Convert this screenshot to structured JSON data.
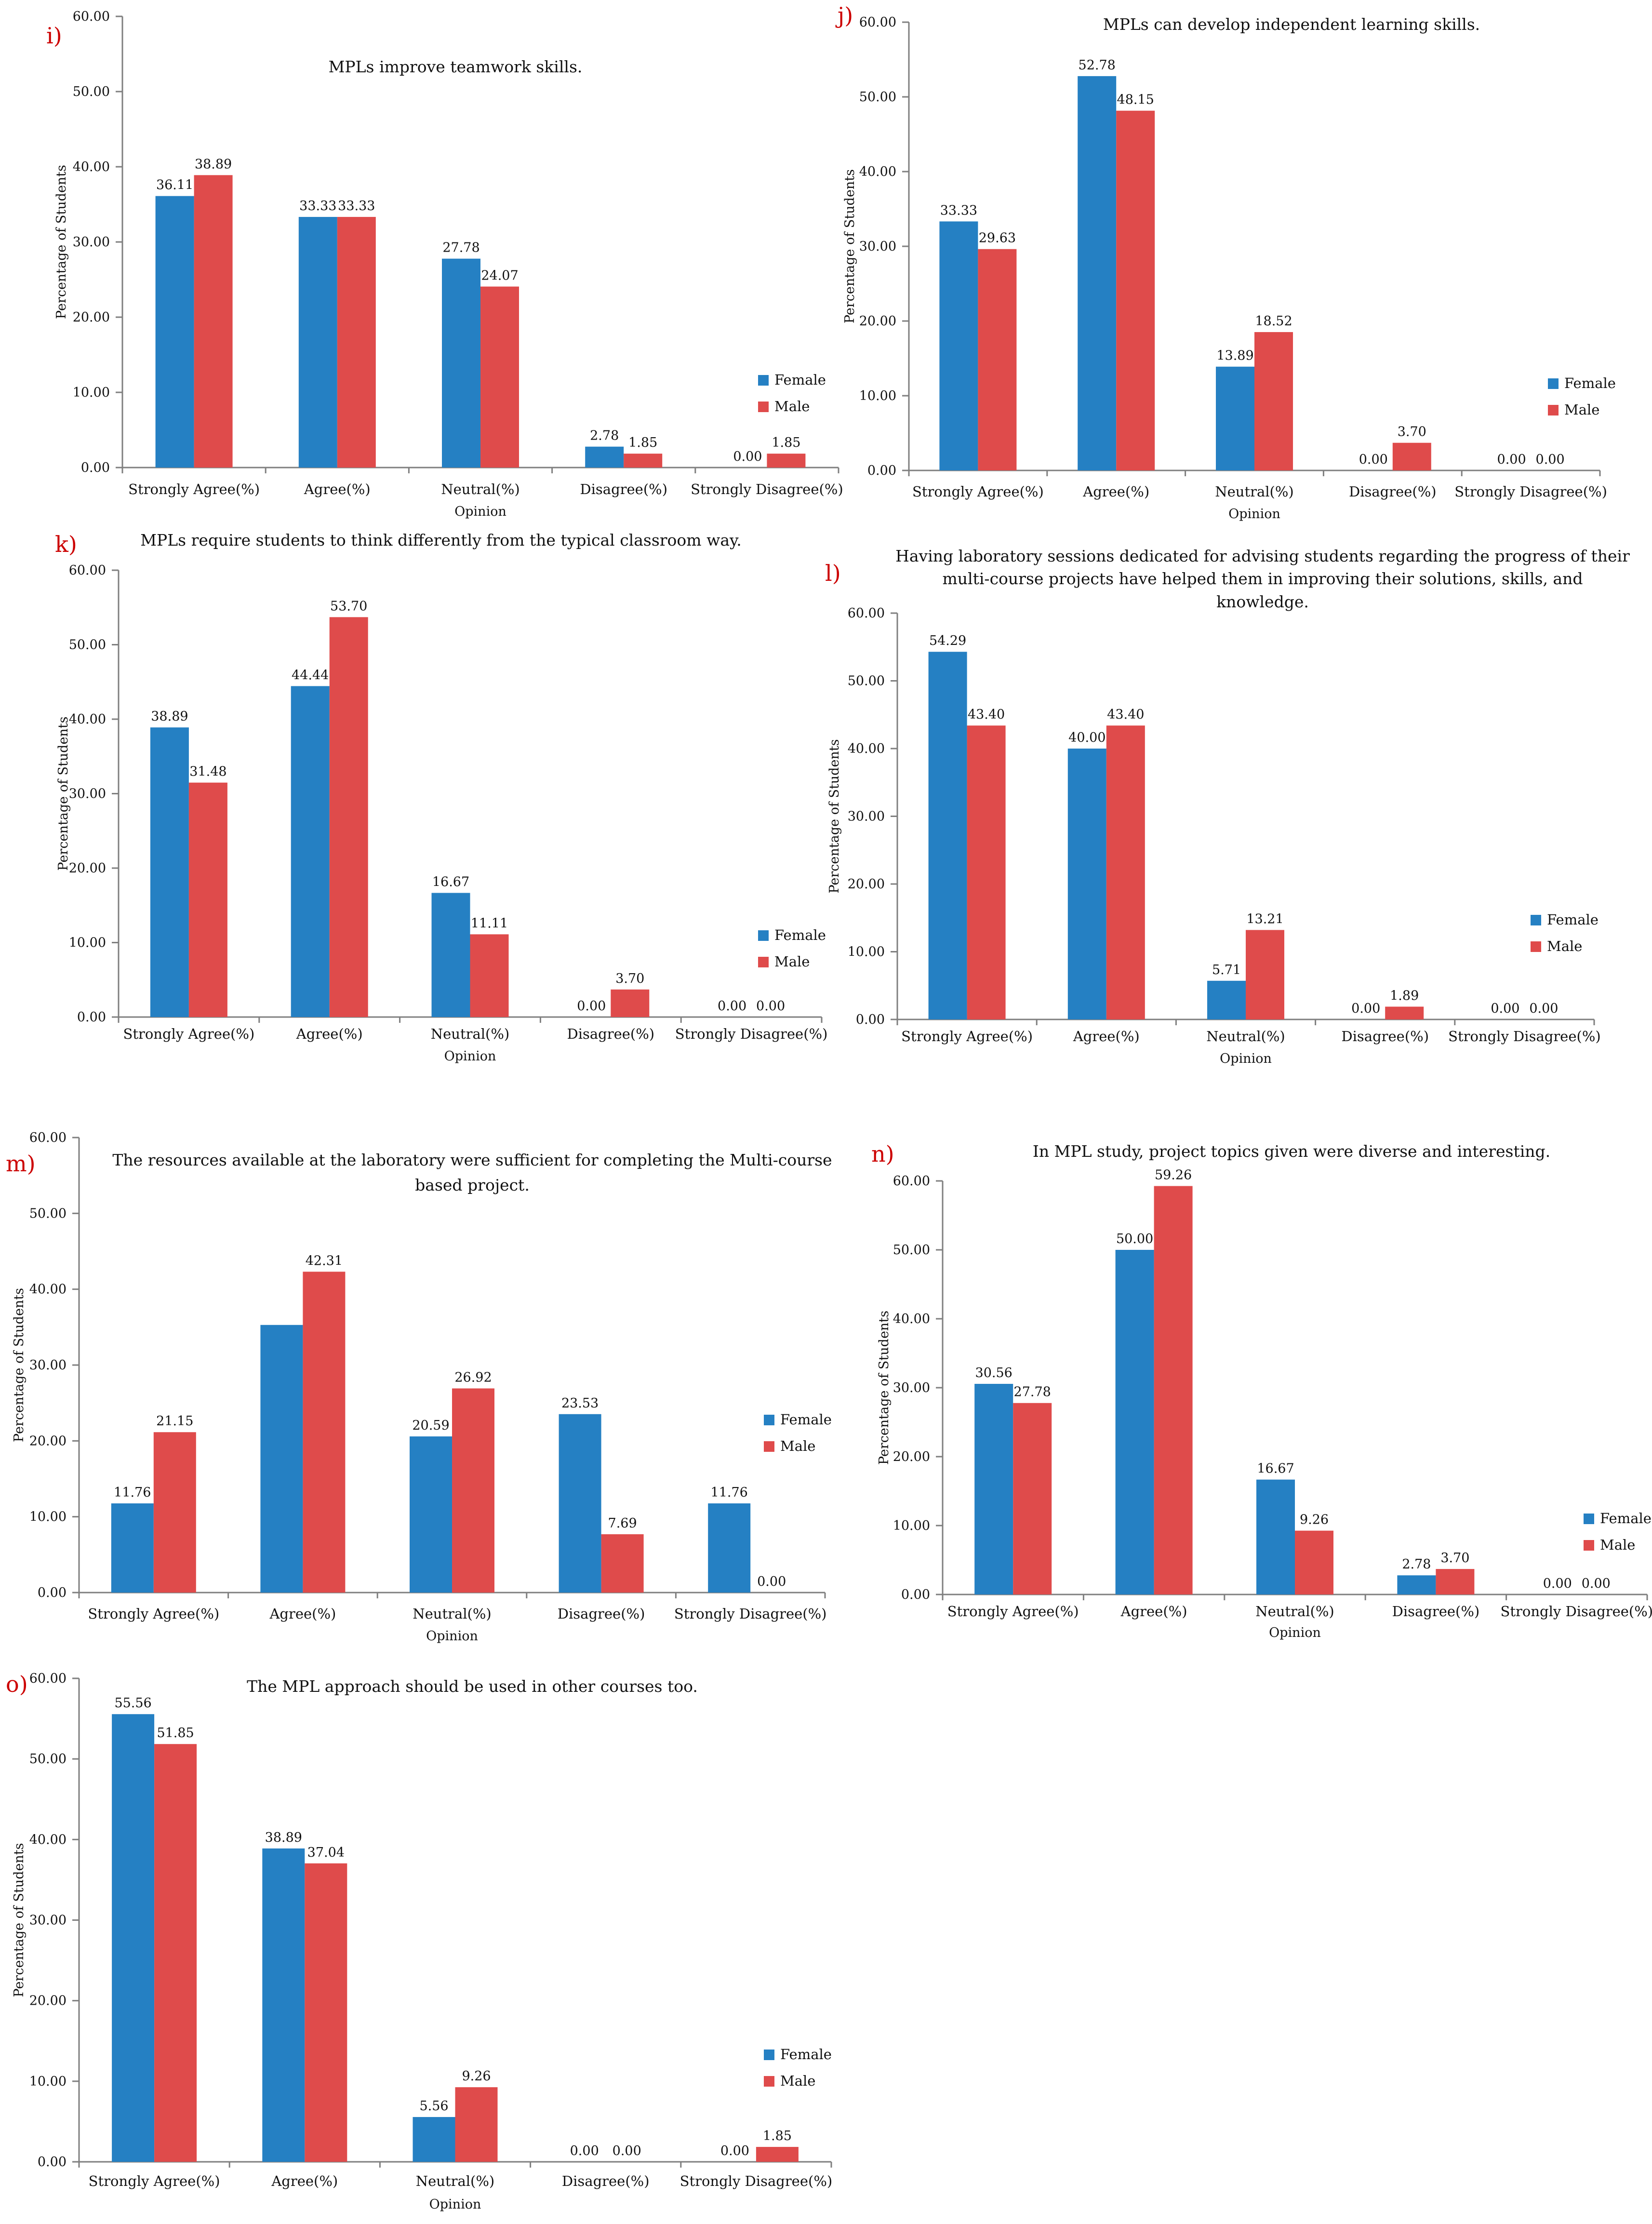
{
  "colors": {
    "female": "#2580c3",
    "male": "#df4b4b",
    "axis": "#7f7f7f",
    "letter": "#cc0000"
  },
  "chart_data": [
    {
      "panel": "i)",
      "type": "bar",
      "title": [
        "MPLs improve teamwork skills."
      ],
      "categories": [
        "Strongly Agree(%)",
        "Agree(%)",
        "Neutral(%)",
        "Disagree(%)",
        "Strongly Disagree(%)"
      ],
      "series": [
        {
          "name": "Female",
          "values": [
            36.11,
            33.33,
            27.78,
            2.78,
            0.0
          ],
          "labels": [
            "36.11",
            "33.33",
            "27.78",
            "2.78",
            "0.00"
          ]
        },
        {
          "name": "Male",
          "values": [
            38.89,
            33.33,
            24.07,
            1.85,
            1.85
          ],
          "labels": [
            "38.89",
            "33.33",
            "24.07",
            "1.85",
            "1.85"
          ]
        }
      ],
      "xlabel": "Opinion",
      "ylabel": "Percentage of Students",
      "ylim": [
        0,
        60
      ],
      "yticks": [
        "0.00",
        "10.00",
        "20.00",
        "30.00",
        "40.00",
        "50.00",
        "60.00"
      ],
      "legend": "right"
    },
    {
      "panel": "j)",
      "type": "bar",
      "title": [
        "MPLs can develop independent learning skills."
      ],
      "categories": [
        "Strongly Agree(%)",
        "Agree(%)",
        "Neutral(%)",
        "Disagree(%)",
        "Strongly Disagree(%)"
      ],
      "series": [
        {
          "name": "Female",
          "values": [
            33.33,
            52.78,
            13.89,
            0.0,
            0.0
          ],
          "labels": [
            "33.33",
            "52.78",
            "13.89",
            "0.00",
            "0.00"
          ]
        },
        {
          "name": "Male",
          "values": [
            29.63,
            48.15,
            18.52,
            3.7,
            0.0
          ],
          "labels": [
            "29.63",
            "48.15",
            "18.52",
            "3.70",
            "0.00"
          ]
        }
      ],
      "xlabel": "Opinion",
      "ylabel": "Percentage of Students",
      "ylim": [
        0,
        60
      ],
      "yticks": [
        "0.00",
        "10.00",
        "20.00",
        "30.00",
        "40.00",
        "50.00",
        "60.00"
      ],
      "legend": "right"
    },
    {
      "panel": "k)",
      "type": "bar",
      "title": [
        "MPLs require students to think differently from the typical classroom way."
      ],
      "categories": [
        "Strongly Agree(%)",
        "Agree(%)",
        "Neutral(%)",
        "Disagree(%)",
        "Strongly Disagree(%)"
      ],
      "series": [
        {
          "name": "Female",
          "values": [
            38.89,
            44.44,
            16.67,
            0.0,
            0.0
          ],
          "labels": [
            "38.89",
            "44.44",
            "16.67",
            "0.00",
            "0.00"
          ]
        },
        {
          "name": "Male",
          "values": [
            31.48,
            53.7,
            11.11,
            3.7,
            0.0
          ],
          "labels": [
            "31.48",
            "53.70",
            "11.11",
            "3.70",
            "0.00"
          ]
        }
      ],
      "xlabel": "Opinion",
      "ylabel": "Percentage of Students",
      "ylim": [
        0,
        60
      ],
      "yticks": [
        "0.00",
        "10.00",
        "20.00",
        "30.00",
        "40.00",
        "50.00",
        "60.00"
      ],
      "legend": "right"
    },
    {
      "panel": "l)",
      "type": "bar",
      "title": [
        "Having laboratory sessions dedicated for advising students regarding the progress of their",
        "multi-course projects have helped them in improving their solutions, skills, and",
        "knowledge."
      ],
      "categories": [
        "Strongly Agree(%)",
        "Agree(%)",
        "Neutral(%)",
        "Disagree(%)",
        "Strongly Disagree(%)"
      ],
      "series": [
        {
          "name": "Female",
          "values": [
            54.29,
            40.0,
            5.71,
            0.0,
            0.0
          ],
          "labels": [
            "54.29",
            "40.00",
            "5.71",
            "0.00",
            "0.00"
          ]
        },
        {
          "name": "Male",
          "values": [
            43.4,
            43.4,
            13.21,
            1.89,
            0.0
          ],
          "labels": [
            "43.40",
            "43.40",
            "13.21",
            "1.89",
            "0.00"
          ]
        }
      ],
      "xlabel": "Opinion",
      "ylabel": "Percentage of Students",
      "ylim": [
        0,
        60
      ],
      "yticks": [
        "0.00",
        "10.00",
        "20.00",
        "30.00",
        "40.00",
        "50.00",
        "60.00"
      ],
      "legend": "right"
    },
    {
      "panel": "m)",
      "type": "bar",
      "title": [
        "The resources available at the laboratory were sufficient for completing the Multi-course",
        "based project."
      ],
      "categories": [
        "Strongly Agree(%)",
        "Agree(%)",
        "Neutral(%)",
        "Disagree(%)",
        "Strongly Disagree(%)"
      ],
      "series": [
        {
          "name": "Female",
          "values": [
            11.76,
            35.29,
            20.59,
            23.53,
            11.76
          ],
          "labels": [
            "11.76",
            "",
            "20.59",
            "23.53",
            "11.76"
          ]
        },
        {
          "name": "Male",
          "values": [
            21.15,
            42.31,
            26.92,
            7.69,
            0.0
          ],
          "labels": [
            "21.15",
            "42.31",
            "26.92",
            "7.69",
            "0.00"
          ]
        }
      ],
      "xlabel": "Opinion",
      "ylabel": "Percentage of Students",
      "ylim": [
        0,
        60
      ],
      "yticks": [
        "0.00",
        "10.00",
        "20.00",
        "30.00",
        "40.00",
        "50.00",
        "60.00"
      ],
      "legend": "right"
    },
    {
      "panel": "n)",
      "type": "bar",
      "title": [
        "In MPL study, project topics given were diverse and interesting."
      ],
      "categories": [
        "Strongly Agree(%)",
        "Agree(%)",
        "Neutral(%)",
        "Disagree(%)",
        "Strongly Disagree(%)"
      ],
      "series": [
        {
          "name": "Female",
          "values": [
            30.56,
            50.0,
            16.67,
            2.78,
            0.0
          ],
          "labels": [
            "30.56",
            "50.00",
            "16.67",
            "2.78",
            "0.00"
          ]
        },
        {
          "name": "Male",
          "values": [
            27.78,
            59.26,
            9.26,
            3.7,
            0.0
          ],
          "labels": [
            "27.78",
            "59.26",
            "9.26",
            "3.70",
            "0.00"
          ]
        }
      ],
      "xlabel": "Opinion",
      "ylabel": "Percentage of Students",
      "ylim": [
        0,
        60
      ],
      "yticks": [
        "0.00",
        "10.00",
        "20.00",
        "30.00",
        "40.00",
        "50.00",
        "60.00"
      ],
      "legend": "right"
    },
    {
      "panel": "o)",
      "type": "bar",
      "title": [
        "The MPL approach should be used in other courses too."
      ],
      "categories": [
        "Strongly Agree(%)",
        "Agree(%)",
        "Neutral(%)",
        "Disagree(%)",
        "Strongly Disagree(%)"
      ],
      "series": [
        {
          "name": "Female",
          "values": [
            55.56,
            38.89,
            5.56,
            0.0,
            0.0
          ],
          "labels": [
            "55.56",
            "38.89",
            "5.56",
            "0.00",
            "0.00"
          ]
        },
        {
          "name": "Male",
          "values": [
            51.85,
            37.04,
            9.26,
            0.0,
            1.85
          ],
          "labels": [
            "51.85",
            "37.04",
            "9.26",
            "0.00",
            "1.85"
          ]
        }
      ],
      "xlabel": "Opinion",
      "ylabel": "Percentage of Students",
      "ylim": [
        0,
        60
      ],
      "yticks": [
        "0.00",
        "10.00",
        "20.00",
        "30.00",
        "40.00",
        "50.00",
        "60.00"
      ],
      "legend": "right"
    }
  ]
}
